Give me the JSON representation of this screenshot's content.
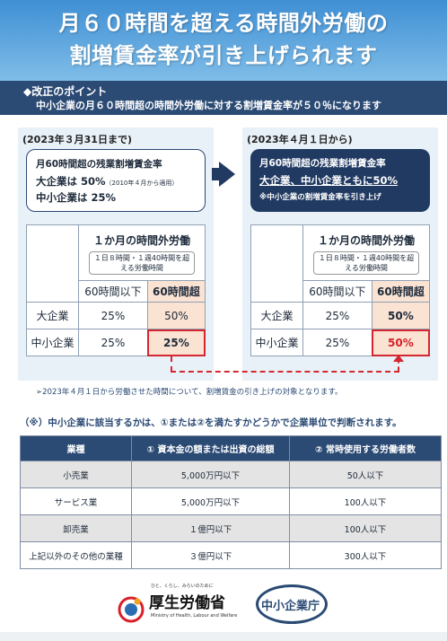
{
  "hero": {
    "line1": "月６０時間を超える時間外労働の",
    "line2": "割増賃金率が引き上げられます"
  },
  "point": {
    "title": "◆改正のポイント",
    "body": "中小企業の月６０時間超の時間外労働に対する割増賃金率が５０％になります"
  },
  "before": {
    "date": "(2023年３月31日まで)",
    "info_title": "月60時間超の残業割増賃金率",
    "info_large": "大企業は 50%",
    "info_large_note": "（2010年４月から適用）",
    "info_small": "中小企業は 25%",
    "table_title": "１か月の時間外労働",
    "table_sub": "１日８時間・１週40時間を超える労働時間",
    "col_under": "60時間以下",
    "col_over": "60時間超",
    "row_large": "大企業",
    "row_small": "中小企業",
    "large_under": "25%",
    "large_over": "50%",
    "small_under": "25%",
    "small_over": "25%"
  },
  "after": {
    "date": "(2023年４月１日から)",
    "info_title": "月60時間超の残業割増賃金率",
    "info_main": "大企業、中小企業ともに50%",
    "info_note": "※中小企業の割増賃金率を引き上げ",
    "table_title": "１か月の時間外労働",
    "table_sub": "１日８時間・１週40時間を超える労働時間",
    "col_under": "60時間以下",
    "col_over": "60時間超",
    "row_large": "大企業",
    "row_small": "中小企業",
    "large_under": "25%",
    "large_over": "50%",
    "small_under": "25%",
    "small_over": "50%"
  },
  "note1": "➢2023年４月１日から労働させた時間について、割増賃金の引き上げの対象となります。",
  "note2": "（※）中小企業に該当するかは、①または②を満たすかどうかで企業単位で判断されます。",
  "criteria": {
    "headers": [
      "業種",
      "① 資本金の額または出資の総額",
      "② 常時使用する労働者数"
    ],
    "rows": [
      [
        "小売業",
        "5,000万円以下",
        "50人以下"
      ],
      [
        "サービス業",
        "5,000万円以下",
        "100人以下"
      ],
      [
        "卸売業",
        "１億円以下",
        "100人以下"
      ],
      [
        "上記以外のその他の業種",
        "３億円以下",
        "300人以下"
      ]
    ]
  },
  "footer": {
    "mhlw_tagline": "ひと、くらし、みらいのために",
    "mhlw_name": "厚生労働省",
    "mhlw_english": "Ministry of Health, Labour and Welfare",
    "sme_name": "中小企業庁"
  },
  "colors": {
    "navy": "#2b4a74",
    "dark_navy": "#213a62",
    "hero_top": "#3f8fd4",
    "accent_red": "#d42730",
    "highlight_peach": "#fbe3d3"
  }
}
